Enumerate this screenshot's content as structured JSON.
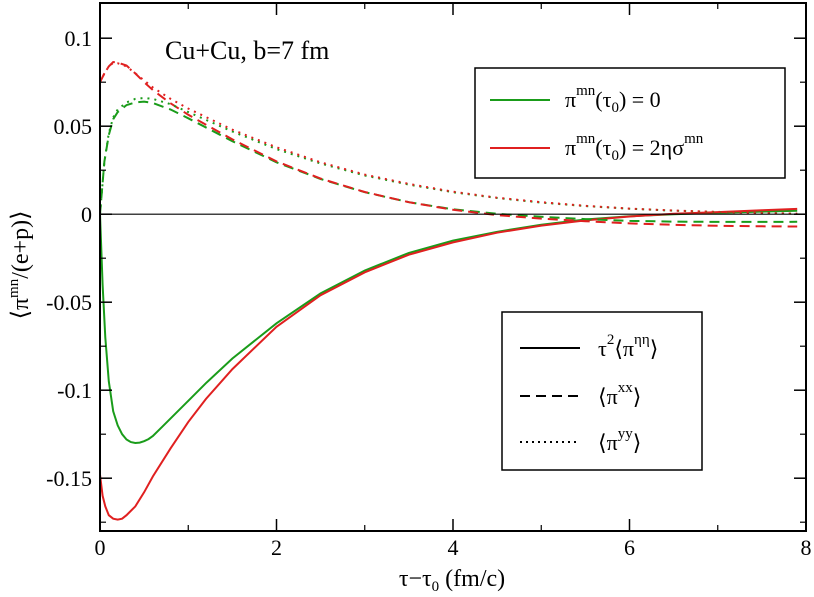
{
  "chart_data": {
    "type": "line",
    "annotation": "Cu+Cu, b=7 fm",
    "xlabel": {
      "main": "τ−τ",
      "sub": "0",
      "rest": " (fm/c)"
    },
    "ylabel": {
      "pre": "⟨π",
      "sup": "mn",
      "rest": "/(e+p)⟩"
    },
    "xlim": [
      0,
      8
    ],
    "ylim": [
      -0.18,
      0.12
    ],
    "x_ticks": [
      0,
      2,
      4,
      6,
      8
    ],
    "x_tick_labels": [
      "0",
      "2",
      "4",
      "6",
      "8"
    ],
    "y_ticks": [
      0.1,
      0.05,
      0,
      -0.05,
      -0.1,
      -0.15
    ],
    "y_tick_labels": [
      "0.1",
      "0.05",
      "0",
      "-0.05",
      "-0.1",
      "-0.15"
    ],
    "legend_color": {
      "position": "top-right",
      "entries": [
        {
          "color": "#1a9c1a",
          "pre": "π",
          "sup": "mn",
          "mid": "(τ",
          "sub": "0",
          "post": ") = 0"
        },
        {
          "color": "#e02020",
          "pre": "π",
          "sup": "mn",
          "mid": "(τ",
          "sub": "0",
          "post": ") = 2ησ",
          "sup2": "mn"
        }
      ]
    },
    "legend_style": {
      "position": "bottom-right",
      "entries": [
        {
          "dash": "solid",
          "pre": "τ",
          "sup": "2",
          "mid": "⟨π",
          "sup2": "ηη",
          "post": "⟩"
        },
        {
          "dash": "dashed",
          "pre": "⟨π",
          "sup": "xx",
          "post": "⟩"
        },
        {
          "dash": "dotted",
          "pre": "⟨π",
          "sup": "yy",
          "post": "⟩"
        }
      ]
    },
    "series": [
      {
        "name": "green τ²⟨π^ηη⟩",
        "color": "#1a9c1a",
        "dash": "solid",
        "x": [
          0,
          0.03,
          0.06,
          0.1,
          0.15,
          0.2,
          0.25,
          0.3,
          0.35,
          0.4,
          0.45,
          0.5,
          0.55,
          0.6,
          0.7,
          0.8,
          1.0,
          1.2,
          1.5,
          2.0,
          2.5,
          3.0,
          3.5,
          4.0,
          4.5,
          5.0,
          5.5,
          6.0,
          6.5,
          7.0,
          7.5,
          7.9
        ],
        "y": [
          0,
          -0.04,
          -0.07,
          -0.095,
          -0.112,
          -0.12,
          -0.125,
          -0.128,
          -0.1295,
          -0.13,
          -0.1298,
          -0.129,
          -0.1278,
          -0.126,
          -0.121,
          -0.116,
          -0.106,
          -0.096,
          -0.082,
          -0.062,
          -0.045,
          -0.032,
          -0.022,
          -0.015,
          -0.01,
          -0.006,
          -0.003,
          -0.0012,
          0,
          0.0008,
          0.0015,
          0.002
        ]
      },
      {
        "name": "red τ²⟨π^ηη⟩",
        "color": "#e02020",
        "dash": "solid",
        "x": [
          0,
          0.03,
          0.06,
          0.1,
          0.15,
          0.2,
          0.25,
          0.3,
          0.4,
          0.5,
          0.6,
          0.8,
          1.0,
          1.2,
          1.5,
          2.0,
          2.5,
          3.0,
          3.5,
          4.0,
          4.5,
          5.0,
          5.5,
          6.0,
          6.5,
          7.0,
          7.5,
          7.9
        ],
        "y": [
          -0.148,
          -0.16,
          -0.166,
          -0.171,
          -0.173,
          -0.1735,
          -0.173,
          -0.171,
          -0.166,
          -0.158,
          -0.149,
          -0.133,
          -0.118,
          -0.105,
          -0.088,
          -0.064,
          -0.046,
          -0.033,
          -0.023,
          -0.016,
          -0.0105,
          -0.0065,
          -0.0035,
          -0.0013,
          0.0002,
          0.0012,
          0.0022,
          0.003
        ]
      },
      {
        "name": "green ⟨π^xx⟩",
        "color": "#1a9c1a",
        "dash": "dashed",
        "x": [
          0,
          0.05,
          0.1,
          0.15,
          0.2,
          0.3,
          0.4,
          0.5,
          0.6,
          0.8,
          1.0,
          1.5,
          2.0,
          2.5,
          3.0,
          3.5,
          4.0,
          4.5,
          5.0,
          5.5,
          6.0,
          6.5,
          7.0,
          7.5,
          7.9
        ],
        "y": [
          0,
          0.03,
          0.045,
          0.054,
          0.058,
          0.062,
          0.0635,
          0.064,
          0.0632,
          0.0595,
          0.0545,
          0.0415,
          0.0295,
          0.02,
          0.0125,
          0.0068,
          0.0028,
          0.0002,
          -0.0015,
          -0.0028,
          -0.0038,
          -0.0042,
          -0.0044,
          -0.0044,
          -0.0043
        ]
      },
      {
        "name": "red ⟨π^xx⟩",
        "color": "#e02020",
        "dash": "dashed",
        "x": [
          0,
          0.05,
          0.1,
          0.15,
          0.2,
          0.3,
          0.4,
          0.5,
          0.6,
          0.8,
          1.0,
          1.5,
          2.0,
          2.5,
          3.0,
          3.5,
          4.0,
          4.5,
          5.0,
          5.5,
          6.0,
          6.5,
          7.0,
          7.5,
          7.9
        ],
        "y": [
          0.075,
          0.08,
          0.084,
          0.0865,
          0.0862,
          0.0845,
          0.08,
          0.075,
          0.0705,
          0.063,
          0.0565,
          0.0425,
          0.03,
          0.0202,
          0.0126,
          0.0068,
          0.0025,
          -0.0005,
          -0.0025,
          -0.004,
          -0.0052,
          -0.006,
          -0.0066,
          -0.0069,
          -0.007
        ]
      },
      {
        "name": "green ⟨π^yy⟩",
        "color": "#1a9c1a",
        "dash": "dotted",
        "x": [
          0,
          0.05,
          0.1,
          0.15,
          0.2,
          0.3,
          0.4,
          0.5,
          0.6,
          0.8,
          1.0,
          1.5,
          2.0,
          2.5,
          3.0,
          3.5,
          4.0,
          4.5,
          5.0,
          5.5,
          6.0,
          6.5,
          7.0,
          7.5,
          7.9
        ],
        "y": [
          0,
          0.03,
          0.046,
          0.055,
          0.0595,
          0.0635,
          0.0655,
          0.066,
          0.0655,
          0.0625,
          0.058,
          0.047,
          0.037,
          0.0288,
          0.022,
          0.0168,
          0.0125,
          0.0092,
          0.0066,
          0.0046,
          0.0031,
          0.002,
          0.0012,
          0.0006,
          0.0003
        ]
      },
      {
        "name": "red ⟨π^yy⟩",
        "color": "#e02020",
        "dash": "dotted",
        "x": [
          0,
          0.05,
          0.1,
          0.15,
          0.2,
          0.3,
          0.4,
          0.5,
          0.6,
          0.8,
          1.0,
          1.5,
          2.0,
          2.5,
          3.0,
          3.5,
          4.0,
          4.5,
          5.0,
          5.5,
          6.0,
          6.5,
          7.0,
          7.5,
          7.9
        ],
        "y": [
          0.075,
          0.08,
          0.084,
          0.086,
          0.0858,
          0.084,
          0.08,
          0.076,
          0.072,
          0.0655,
          0.06,
          0.048,
          0.038,
          0.0295,
          0.0225,
          0.0172,
          0.0128,
          0.0094,
          0.0068,
          0.0048,
          0.0032,
          0.0021,
          0.0013,
          0.0007,
          0.0003
        ]
      }
    ]
  }
}
